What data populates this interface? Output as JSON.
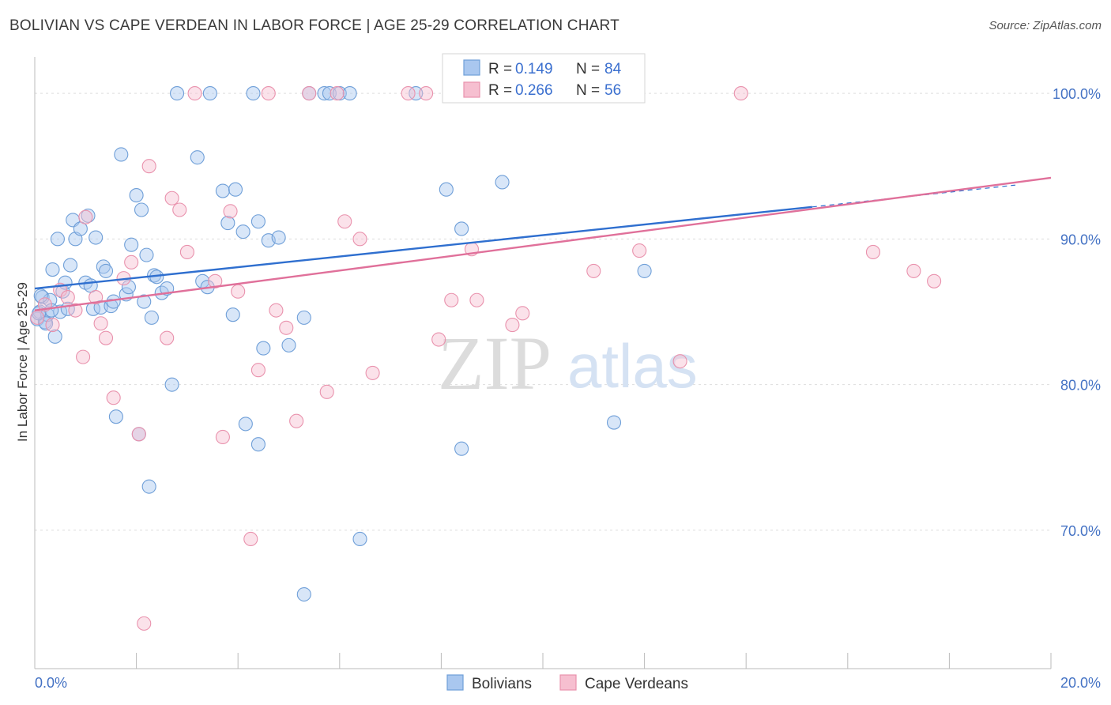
{
  "title": "BOLIVIAN VS CAPE VERDEAN IN LABOR FORCE | AGE 25-29 CORRELATION CHART",
  "source": "Source: ZipAtlas.com",
  "colors": {
    "blue_fill": "#a9c7ef",
    "blue_stroke": "#6f9fd8",
    "blue_line": "#2f6fcf",
    "pink_fill": "#f6bfd0",
    "pink_stroke": "#e992ad",
    "pink_line": "#e0709a",
    "tick_text": "#4472c4",
    "grid": "#dddddd"
  },
  "legend_box": {
    "rows": [
      {
        "r_label": "R =",
        "r_value": "0.149",
        "n_label": "N =",
        "n_value": "84"
      },
      {
        "r_label": "R =",
        "r_value": "0.266",
        "n_label": "N =",
        "n_value": "56"
      }
    ]
  },
  "bottom_legend": [
    "Bolivians",
    "Cape Verdeans"
  ],
  "watermark": {
    "part1": "ZIP",
    "part2": "atlas"
  },
  "chart_data": {
    "type": "scatter",
    "ylabel": "In Labor Force | Age 25-29",
    "xlim": [
      0,
      20
    ],
    "ylim": [
      60.5,
      102.5
    ],
    "x_tick_labels": [
      {
        "value": 0,
        "label": "0.0%"
      },
      {
        "value": 20,
        "label": "20.0%"
      }
    ],
    "y_tick_labels": [
      {
        "value": 100,
        "label": "100.0%"
      },
      {
        "value": 90,
        "label": "90.0%"
      },
      {
        "value": 80,
        "label": "80.0%"
      },
      {
        "value": 70,
        "label": "70.0%"
      }
    ],
    "grid": true,
    "legend_position": "top-center",
    "series": [
      {
        "name": "Bolivians",
        "color": "#6f9fd8",
        "r": 0.149,
        "n": 84,
        "trend": {
          "x0": 0,
          "y0": 86.6,
          "x1": 15.3,
          "y1": 92.2,
          "dash_to_x": 19.3,
          "dash_to_y": 93.7
        },
        "points": [
          [
            0.05,
            84.5
          ],
          [
            0.1,
            85.0
          ],
          [
            0.15,
            86.0
          ],
          [
            0.2,
            84.3
          ],
          [
            0.25,
            84.8
          ],
          [
            0.3,
            85.8
          ],
          [
            0.35,
            87.9
          ],
          [
            0.45,
            90.0
          ],
          [
            0.5,
            85.0
          ],
          [
            0.55,
            86.4
          ],
          [
            0.6,
            87.0
          ],
          [
            0.65,
            85.2
          ],
          [
            0.7,
            88.2
          ],
          [
            0.75,
            91.3
          ],
          [
            0.8,
            90.0
          ],
          [
            0.9,
            90.7
          ],
          [
            1.0,
            87.0
          ],
          [
            1.05,
            91.6
          ],
          [
            1.1,
            86.8
          ],
          [
            1.15,
            85.2
          ],
          [
            1.2,
            90.1
          ],
          [
            1.3,
            85.3
          ],
          [
            1.35,
            88.1
          ],
          [
            1.4,
            87.8
          ],
          [
            1.5,
            85.4
          ],
          [
            1.55,
            85.7
          ],
          [
            1.6,
            77.8
          ],
          [
            1.7,
            95.8
          ],
          [
            1.8,
            86.2
          ],
          [
            1.85,
            86.7
          ],
          [
            1.9,
            89.6
          ],
          [
            2.0,
            93.0
          ],
          [
            2.05,
            76.6
          ],
          [
            2.1,
            92.0
          ],
          [
            2.15,
            85.7
          ],
          [
            2.2,
            88.9
          ],
          [
            2.25,
            73.0
          ],
          [
            2.3,
            84.6
          ],
          [
            2.35,
            87.5
          ],
          [
            2.4,
            87.4
          ],
          [
            2.5,
            86.3
          ],
          [
            2.6,
            86.6
          ],
          [
            2.7,
            80.0
          ],
          [
            2.8,
            100.0
          ],
          [
            3.2,
            95.6
          ],
          [
            3.3,
            87.1
          ],
          [
            3.4,
            86.7
          ],
          [
            3.45,
            100.0
          ],
          [
            3.7,
            93.3
          ],
          [
            3.8,
            91.1
          ],
          [
            3.9,
            84.8
          ],
          [
            3.95,
            93.4
          ],
          [
            4.1,
            90.5
          ],
          [
            4.15,
            77.3
          ],
          [
            4.3,
            100.0
          ],
          [
            4.4,
            75.9
          ],
          [
            4.4,
            91.2
          ],
          [
            4.5,
            82.5
          ],
          [
            4.6,
            89.9
          ],
          [
            4.8,
            90.1
          ],
          [
            5.0,
            82.7
          ],
          [
            5.3,
            84.6
          ],
          [
            5.3,
            65.6
          ],
          [
            5.4,
            100.0
          ],
          [
            5.7,
            100.0
          ],
          [
            5.8,
            100.0
          ],
          [
            6.0,
            100.0
          ],
          [
            6.2,
            100.0
          ],
          [
            6.4,
            69.4
          ],
          [
            7.5,
            100.0
          ],
          [
            8.1,
            93.4
          ],
          [
            8.4,
            90.7
          ],
          [
            8.4,
            75.6
          ],
          [
            8.5,
            100.0
          ],
          [
            8.8,
            100.0
          ],
          [
            9.2,
            93.9
          ],
          [
            11.1,
            100.0
          ],
          [
            11.4,
            77.4
          ],
          [
            12.0,
            87.8
          ],
          [
            0.08,
            84.9
          ],
          [
            0.22,
            84.2
          ],
          [
            0.33,
            85.1
          ],
          [
            0.12,
            86.1
          ],
          [
            0.4,
            83.3
          ]
        ]
      },
      {
        "name": "Cape Verdeans",
        "color": "#e992ad",
        "r": 0.266,
        "n": 56,
        "trend": {
          "x0": 0,
          "y0": 85.1,
          "x1": 20.0,
          "y1": 94.2
        },
        "points": [
          [
            0.05,
            84.6
          ],
          [
            0.2,
            85.5
          ],
          [
            0.35,
            84.1
          ],
          [
            0.5,
            86.5
          ],
          [
            0.65,
            86.0
          ],
          [
            0.8,
            85.1
          ],
          [
            0.95,
            81.9
          ],
          [
            1.0,
            91.5
          ],
          [
            1.2,
            86.0
          ],
          [
            1.3,
            84.2
          ],
          [
            1.4,
            83.2
          ],
          [
            1.55,
            79.1
          ],
          [
            1.75,
            87.3
          ],
          [
            1.9,
            88.4
          ],
          [
            2.05,
            76.6
          ],
          [
            2.15,
            63.6
          ],
          [
            2.25,
            95.0
          ],
          [
            2.6,
            83.2
          ],
          [
            2.7,
            92.8
          ],
          [
            2.85,
            92.0
          ],
          [
            3.0,
            89.1
          ],
          [
            3.15,
            100.0
          ],
          [
            3.55,
            87.1
          ],
          [
            3.7,
            76.4
          ],
          [
            3.85,
            91.9
          ],
          [
            4.0,
            86.4
          ],
          [
            4.25,
            69.4
          ],
          [
            4.4,
            81.0
          ],
          [
            4.6,
            100.0
          ],
          [
            4.75,
            85.1
          ],
          [
            4.95,
            83.9
          ],
          [
            5.15,
            77.5
          ],
          [
            5.4,
            100.0
          ],
          [
            5.75,
            79.5
          ],
          [
            5.95,
            100.0
          ],
          [
            6.1,
            91.2
          ],
          [
            6.4,
            90.0
          ],
          [
            6.65,
            80.8
          ],
          [
            7.35,
            100.0
          ],
          [
            7.7,
            100.0
          ],
          [
            7.95,
            83.1
          ],
          [
            8.2,
            85.8
          ],
          [
            8.35,
            100.0
          ],
          [
            8.6,
            89.3
          ],
          [
            8.7,
            85.8
          ],
          [
            9.0,
            100.0
          ],
          [
            9.4,
            84.1
          ],
          [
            9.6,
            84.9
          ],
          [
            11.0,
            87.8
          ],
          [
            11.6,
            100.0
          ],
          [
            11.9,
            89.2
          ],
          [
            12.7,
            81.6
          ],
          [
            13.9,
            100.0
          ],
          [
            16.5,
            89.1
          ],
          [
            17.3,
            87.8
          ],
          [
            17.7,
            87.1
          ]
        ]
      }
    ]
  }
}
